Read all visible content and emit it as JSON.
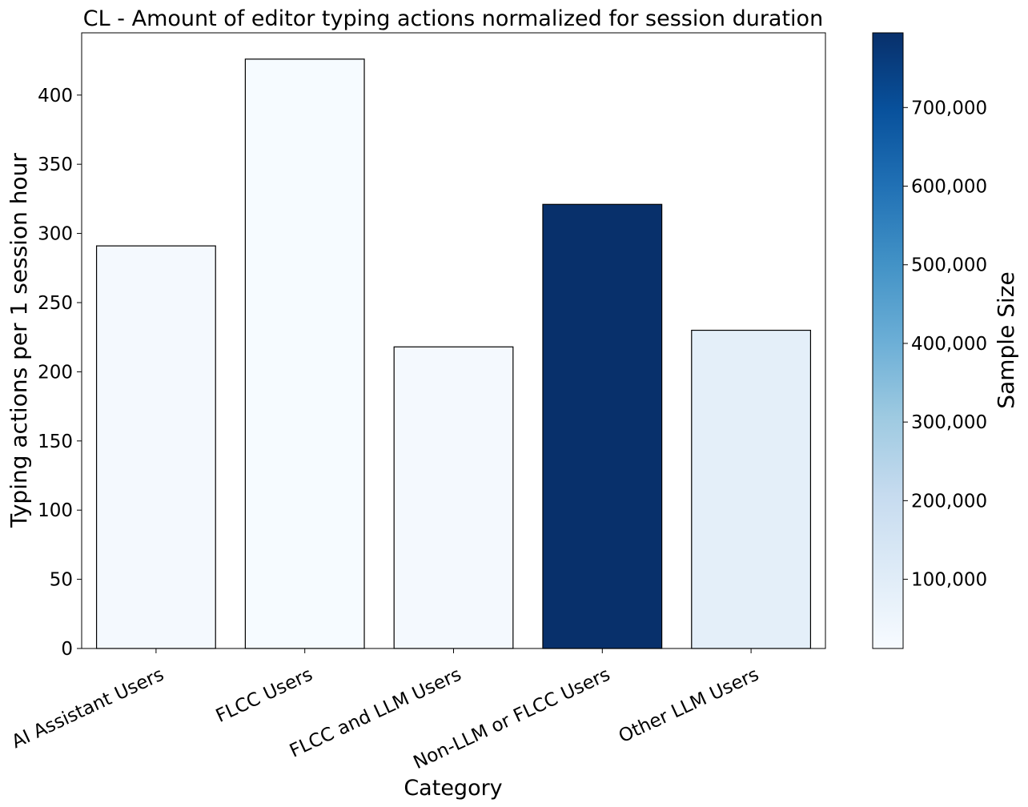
{
  "chart_data": {
    "type": "bar",
    "title": "CL - Amount of editor typing actions normalized for session duration",
    "xlabel": "Category",
    "ylabel": "Typing actions per 1 session hour",
    "categories": [
      "AI Assistant Users",
      "FLCC Users",
      "FLCC and LLM Users",
      "Non-LLM or FLCC Users",
      "Other LLM Users"
    ],
    "values": [
      291,
      426,
      218,
      321,
      230
    ],
    "sample_sizes": [
      25000,
      15000,
      22000,
      795000,
      85000
    ],
    "ylim": [
      0,
      445
    ],
    "yticks": [
      0,
      50,
      100,
      150,
      200,
      250,
      300,
      350,
      400
    ],
    "colorbar": {
      "label": "Sample Size",
      "colormap": "Blues",
      "range": [
        12000,
        795000
      ],
      "ticks": [
        100000,
        200000,
        300000,
        400000,
        500000,
        600000,
        700000
      ],
      "tick_labels": [
        "100,000",
        "200,000",
        "300,000",
        "400,000",
        "500,000",
        "600,000",
        "700,000"
      ],
      "colors": [
        "#f7fbff",
        "#deebf7",
        "#c6dbef",
        "#9ecae1",
        "#6baed6",
        "#4292c6",
        "#2171b5",
        "#08519c",
        "#08306b"
      ]
    },
    "grid": false,
    "legend": "none"
  }
}
